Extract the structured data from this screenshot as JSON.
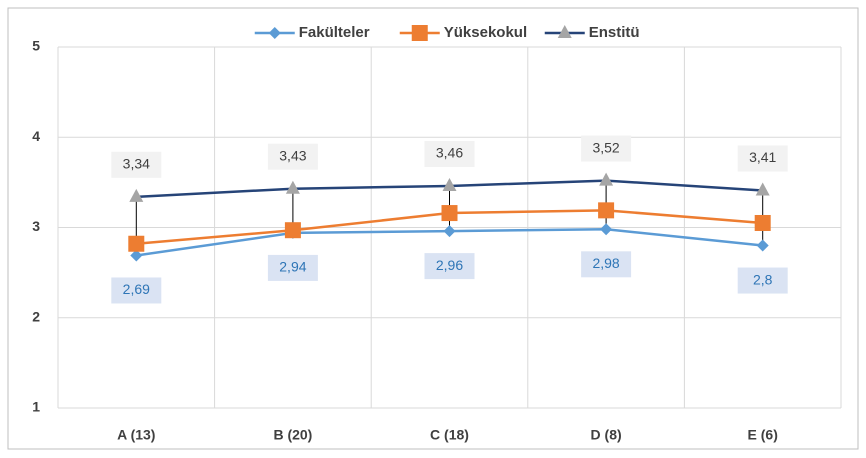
{
  "chart_data": {
    "type": "line",
    "categories": [
      "A (13)",
      "B (20)",
      "C (18)",
      "D (8)",
      "E (6)"
    ],
    "series": [
      {
        "name": "Fakülteler",
        "color": "#5b9bd5",
        "marker": "diamond",
        "values": [
          2.69,
          2.94,
          2.96,
          2.98,
          2.8
        ],
        "value_labels": [
          "2,69",
          "2,94",
          "2,96",
          "2,98",
          "2,8"
        ],
        "label_position": "below"
      },
      {
        "name": "Yüksekokul",
        "color": "#ed7d31",
        "marker": "square",
        "values": [
          2.82,
          2.97,
          3.16,
          3.19,
          3.05
        ]
      },
      {
        "name": "Enstitü",
        "color": "#264478",
        "marker": "triangle",
        "marker_color": "#a5a5a5",
        "values": [
          3.34,
          3.43,
          3.46,
          3.52,
          3.41
        ],
        "value_labels": [
          "3,34",
          "3,43",
          "3,46",
          "3,52",
          "3,41"
        ],
        "label_position": "above"
      }
    ],
    "ylim": [
      1,
      5
    ],
    "yticks": [
      1,
      2,
      3,
      4,
      5
    ],
    "grid": true,
    "legend": "top",
    "high_low_lines": true
  }
}
